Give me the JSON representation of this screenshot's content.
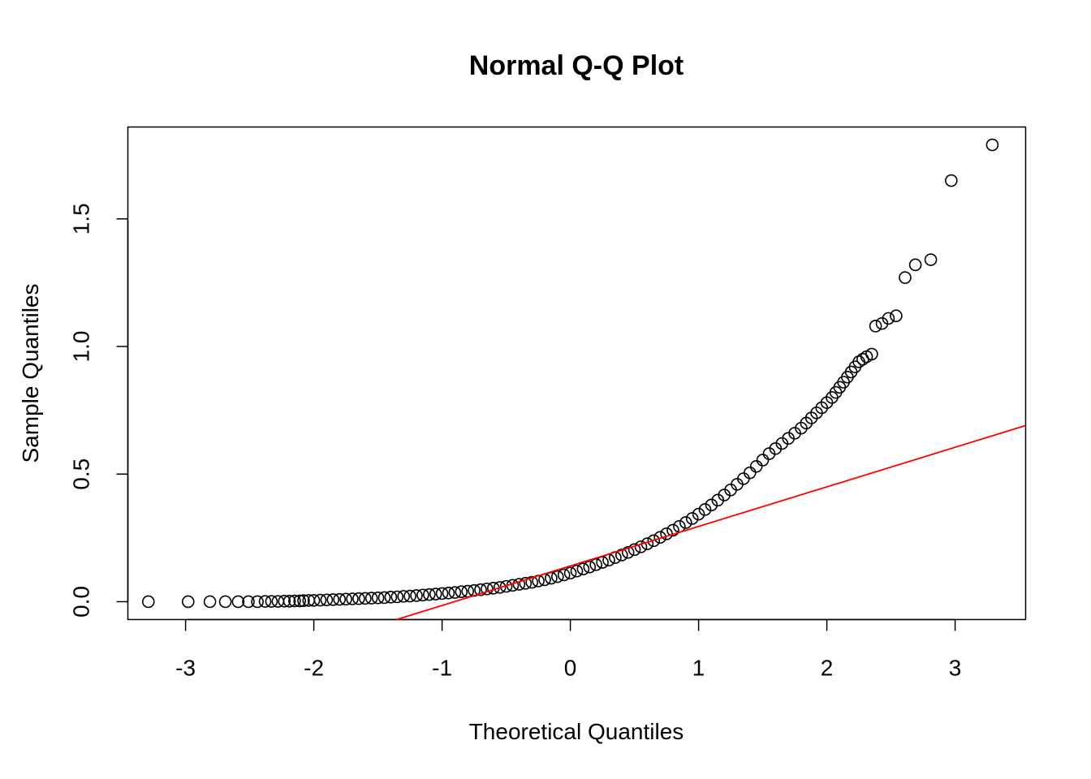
{
  "chart_data": {
    "type": "scatter",
    "title": "Normal Q-Q Plot",
    "xlabel": "Theoretical Quantiles",
    "ylabel": "Sample Quantiles",
    "xlim": [
      -3.45,
      3.55
    ],
    "ylim": [
      -0.07,
      1.86
    ],
    "x_ticks": [
      -3,
      -2,
      -1,
      0,
      1,
      2,
      3
    ],
    "x_tick_labels": [
      "-3",
      "-2",
      "-1",
      "0",
      "1",
      "2",
      "3"
    ],
    "y_ticks": [
      0.0,
      0.5,
      1.0,
      1.5
    ],
    "y_tick_labels": [
      "0.0",
      "0.5",
      "1.0",
      "1.5"
    ],
    "grid": false,
    "colors": {
      "points": "#000000",
      "reference_line": "#ff0000",
      "frame": "#000000"
    },
    "reference_line": {
      "intercept": 0.14,
      "slope": 0.155
    },
    "series": [
      {
        "marker": "open-circle",
        "x": [
          -3.29,
          -2.98,
          -2.81,
          -2.69,
          -2.59,
          -2.51,
          -2.44,
          -2.38,
          -2.33,
          -2.28,
          -2.23,
          -2.19,
          -2.15,
          -2.11,
          -2.08,
          -2.04,
          -2.0,
          -1.95,
          -1.9,
          -1.85,
          -1.8,
          -1.75,
          -1.7,
          -1.65,
          -1.6,
          -1.55,
          -1.5,
          -1.45,
          -1.4,
          -1.35,
          -1.3,
          -1.25,
          -1.2,
          -1.15,
          -1.1,
          -1.05,
          -1.0,
          -0.95,
          -0.9,
          -0.85,
          -0.8,
          -0.75,
          -0.7,
          -0.65,
          -0.6,
          -0.55,
          -0.5,
          -0.45,
          -0.4,
          -0.35,
          -0.3,
          -0.25,
          -0.2,
          -0.15,
          -0.1,
          -0.05,
          0.0,
          0.05,
          0.1,
          0.15,
          0.2,
          0.25,
          0.3,
          0.35,
          0.4,
          0.45,
          0.5,
          0.55,
          0.6,
          0.65,
          0.7,
          0.75,
          0.8,
          0.85,
          0.9,
          0.95,
          1.0,
          1.05,
          1.1,
          1.15,
          1.2,
          1.25,
          1.3,
          1.35,
          1.4,
          1.45,
          1.5,
          1.55,
          1.6,
          1.65,
          1.7,
          1.75,
          1.8,
          1.84,
          1.88,
          1.92,
          1.96,
          2.0,
          2.04,
          2.07,
          2.1,
          2.13,
          2.16,
          2.19,
          2.22,
          2.25,
          2.28,
          2.31,
          2.35,
          2.38,
          2.43,
          2.48,
          2.54,
          2.61,
          2.69,
          2.81,
          2.97,
          3.29
        ],
        "y": [
          0.0,
          0.0,
          0.0,
          0.0,
          0.0,
          0.0,
          0.0,
          0.001,
          0.001,
          0.001,
          0.002,
          0.002,
          0.003,
          0.003,
          0.004,
          0.005,
          0.005,
          0.006,
          0.007,
          0.008,
          0.009,
          0.01,
          0.011,
          0.012,
          0.013,
          0.014,
          0.015,
          0.016,
          0.018,
          0.019,
          0.021,
          0.022,
          0.024,
          0.026,
          0.028,
          0.03,
          0.032,
          0.034,
          0.036,
          0.039,
          0.041,
          0.044,
          0.047,
          0.05,
          0.053,
          0.056,
          0.06,
          0.064,
          0.068,
          0.072,
          0.076,
          0.081,
          0.086,
          0.092,
          0.098,
          0.105,
          0.112,
          0.12,
          0.128,
          0.136,
          0.145,
          0.154,
          0.163,
          0.173,
          0.183,
          0.193,
          0.204,
          0.215,
          0.227,
          0.239,
          0.252,
          0.266,
          0.28,
          0.295,
          0.31,
          0.326,
          0.343,
          0.361,
          0.379,
          0.398,
          0.418,
          0.438,
          0.46,
          0.482,
          0.505,
          0.53,
          0.555,
          0.58,
          0.6,
          0.62,
          0.64,
          0.66,
          0.68,
          0.7,
          0.72,
          0.74,
          0.76,
          0.78,
          0.8,
          0.82,
          0.84,
          0.86,
          0.88,
          0.9,
          0.92,
          0.94,
          0.95,
          0.96,
          0.97,
          1.08,
          1.09,
          1.11,
          1.12,
          1.27,
          1.32,
          1.34,
          1.65,
          1.79
        ]
      }
    ]
  }
}
